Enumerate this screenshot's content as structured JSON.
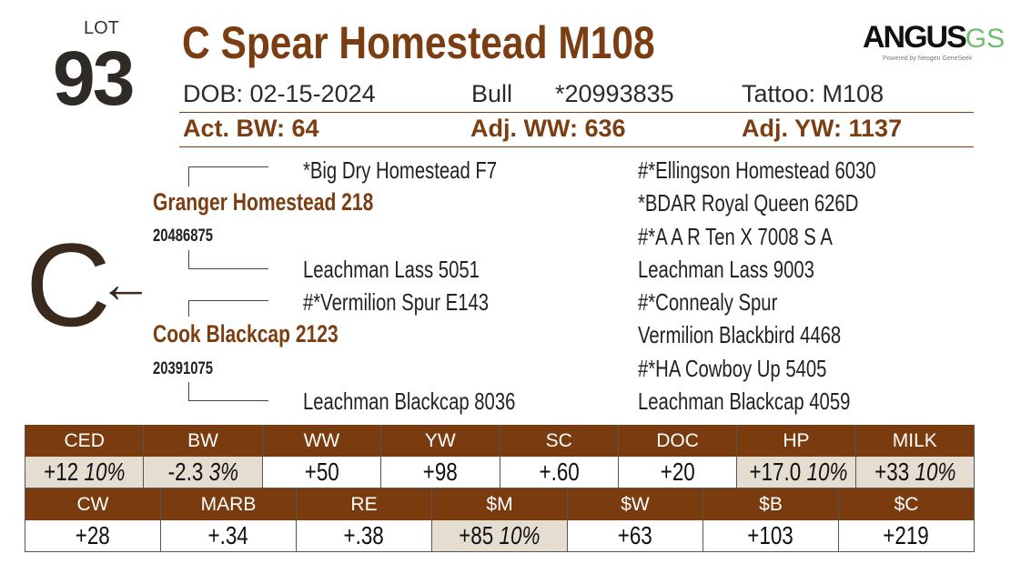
{
  "lot_label": "LOT",
  "lot_number": "93",
  "title": "C Spear Homestead M108",
  "logo": {
    "main": "ANGUS",
    "accent": "GS",
    "tagline": "Powered by Neogen GeneSeek"
  },
  "info": {
    "dob": "DOB:  02-15-2024",
    "sex": "Bull",
    "reg": "*20993835",
    "tattoo": "Tattoo:  M108"
  },
  "weights": {
    "bw": "Act. BW: 64",
    "ww": "Adj. WW: 636",
    "yw": "Adj. YW: 1137"
  },
  "pedigree": {
    "sire": "Granger Homestead 218",
    "sire_reg": "20486875",
    "sire_sire": "*Big Dry Homestead F7",
    "sire_dam": "Leachman Lass 5051",
    "dam": "Cook Blackcap 2123",
    "dam_reg": "20391075",
    "dam_sire": "#*Vermilion Spur E143",
    "dam_dam": "Leachman Blackcap 8036",
    "gen3": [
      "#*Ellingson Homestead 6030",
      "*BDAR Royal Queen 626D",
      "#*A A R Ten X 7008 S A",
      "Leachman Lass 9003",
      "#*Connealy Spur",
      "Vermilion Blackbird 4468",
      "#*HA Cowboy Up 5405",
      "Leachman Blackcap 4059"
    ]
  },
  "brand": "C",
  "epd_row1": [
    {
      "h": "CED",
      "v": "+12",
      "p": "10%",
      "hl": true
    },
    {
      "h": "BW",
      "v": "-2.3",
      "p": "3%",
      "hl": true
    },
    {
      "h": "WW",
      "v": "+50"
    },
    {
      "h": "YW",
      "v": "+98"
    },
    {
      "h": "SC",
      "v": "+.60"
    },
    {
      "h": "DOC",
      "v": "+20"
    },
    {
      "h": "HP",
      "v": "+17.0",
      "p": "10%",
      "hl": true
    },
    {
      "h": "MILK",
      "v": "+33",
      "p": "10%",
      "hl": true
    }
  ],
  "epd_row2": [
    {
      "h": "CW",
      "v": "+28"
    },
    {
      "h": "MARB",
      "v": "+.34"
    },
    {
      "h": "RE",
      "v": "+.38"
    },
    {
      "h": "$M",
      "v": "+85",
      "p": "10%",
      "hl": true
    },
    {
      "h": "$W",
      "v": "+63"
    },
    {
      "h": "$B",
      "v": "+103"
    },
    {
      "h": "$C",
      "v": "+219"
    }
  ]
}
